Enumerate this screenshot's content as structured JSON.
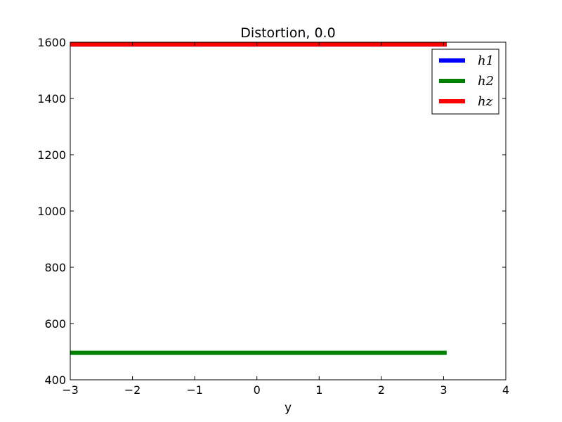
{
  "chart_data": {
    "type": "line",
    "title": "Distortion, 0.0",
    "xlabel": "y",
    "ylabel": "",
    "xlim": [
      -3,
      4
    ],
    "ylim": [
      400,
      1600
    ],
    "xticks": [
      -3,
      -2,
      -1,
      0,
      1,
      2,
      3,
      4
    ],
    "xtick_labels": [
      "−3",
      "−2",
      "−1",
      "0",
      "1",
      "2",
      "3",
      "4"
    ],
    "yticks": [
      400,
      600,
      800,
      1000,
      1200,
      1400,
      1600
    ],
    "ytick_labels": [
      "400",
      "600",
      "800",
      "1000",
      "1200",
      "1400",
      "1600"
    ],
    "grid": false,
    "legend_position": "top-right",
    "series": [
      {
        "name": "h1",
        "color": "#0000ff",
        "x": [
          -3.0,
          3.05
        ],
        "y": [
          1592,
          1592
        ]
      },
      {
        "name": "h2",
        "color": "#008000",
        "x": [
          -3.0,
          3.05
        ],
        "y": [
          496,
          496
        ]
      },
      {
        "name": "hz",
        "color": "#ff0000",
        "x": [
          -3.0,
          3.05
        ],
        "y": [
          1592,
          1592
        ]
      }
    ]
  }
}
